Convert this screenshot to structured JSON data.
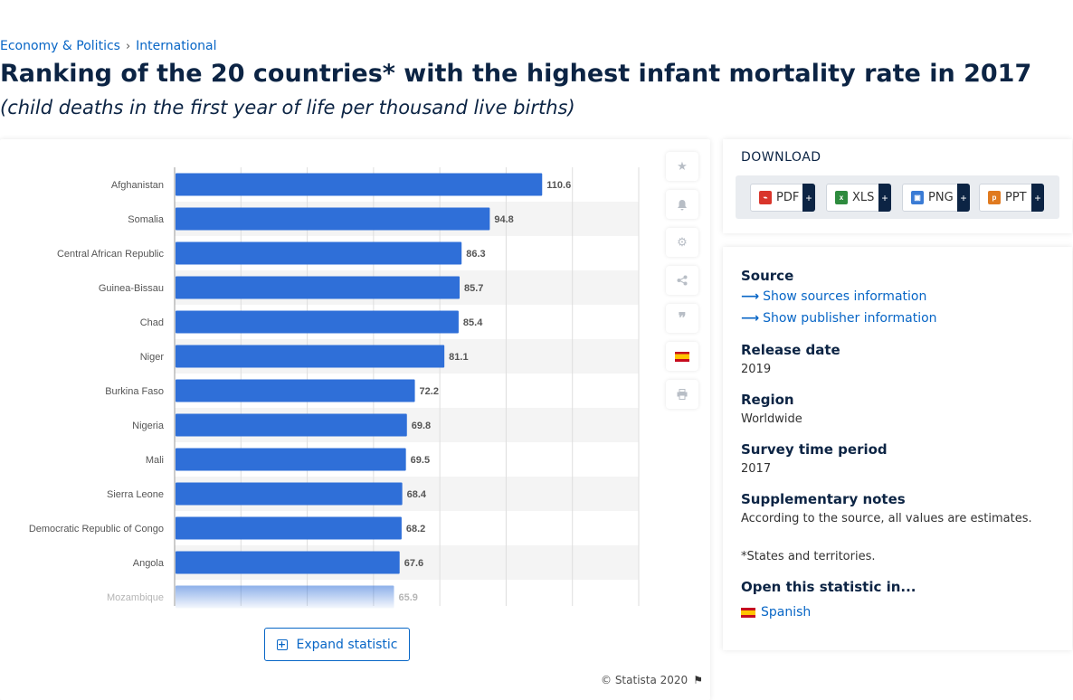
{
  "breadcrumb": {
    "item1": "Economy & Politics",
    "separator": "›",
    "item2": "International"
  },
  "title": "Ranking of the 20 countries* with the highest infant mortality rate in 2017",
  "subtitle": "(child deaths in the first year of life per thousand live births)",
  "chart_data": {
    "type": "bar",
    "orientation": "horizontal",
    "categories": [
      "Afghanistan",
      "Somalia",
      "Central African Republic",
      "Guinea-Bissau",
      "Chad",
      "Niger",
      "Burkina Faso",
      "Nigeria",
      "Mali",
      "Sierra Leone",
      "Democratic Republic of Congo",
      "Angola",
      "Mozambique"
    ],
    "values": [
      110.6,
      94.8,
      86.3,
      85.7,
      85.4,
      81.1,
      72.2,
      69.8,
      69.5,
      68.4,
      68.2,
      67.6,
      65.9
    ],
    "xlim": [
      0,
      140
    ],
    "grid": true,
    "faded_last_row": true,
    "colors": {
      "bar": "#2f6fd8",
      "label": "#555555",
      "grid": "#dedede",
      "stripe": "#f4f4f4"
    }
  },
  "tools": {
    "icons": [
      "star-icon",
      "bell-icon",
      "gear-icon",
      "share-icon",
      "quote-icon",
      "spain-flag-icon",
      "print-icon"
    ]
  },
  "expand_label": "Expand statistic",
  "copyright": "© Statista 2020",
  "download": {
    "title": "DOWNLOAD",
    "buttons": [
      {
        "label": "PDF",
        "color": "#d9352b"
      },
      {
        "label": "XLS",
        "color": "#2e8b3e"
      },
      {
        "label": "PNG",
        "color": "#3a7bd5"
      },
      {
        "label": "PPT",
        "color": "#e07a1f"
      }
    ],
    "plus": "+"
  },
  "info": {
    "source_heading": "Source",
    "show_sources": "Show sources information",
    "show_publisher": "Show publisher information",
    "release_heading": "Release date",
    "release_value": "2019",
    "region_heading": "Region",
    "region_value": "Worldwide",
    "survey_heading": "Survey time period",
    "survey_value": "2017",
    "notes_heading": "Supplementary notes",
    "notes_value": "According to the source, all values are estimates.",
    "notes_footnote": "*States and territories.",
    "open_heading": "Open this statistic in...",
    "open_language": "Spanish"
  }
}
